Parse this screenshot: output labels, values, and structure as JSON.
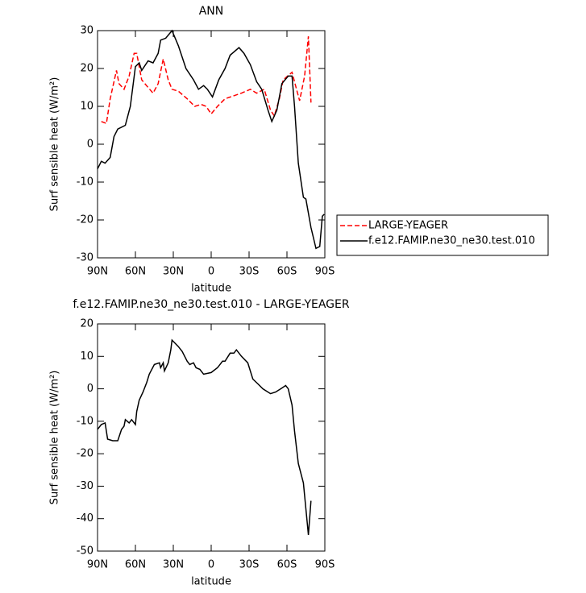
{
  "chart_data": [
    {
      "type": "line",
      "title": "ANN",
      "xlabel": "latitude",
      "ylabel": "Surf sensible heat (W/m²)",
      "xlim": [
        90,
        -90
      ],
      "xticks": [
        {
          "value": 90,
          "label": "90N"
        },
        {
          "value": 60,
          "label": "60N"
        },
        {
          "value": 30,
          "label": "30N"
        },
        0,
        {
          "value": -30,
          "label": "30S"
        },
        {
          "value": -60,
          "label": "60S"
        },
        {
          "value": -90,
          "label": "90S"
        }
      ],
      "ylim": [
        -30,
        30
      ],
      "yticks": [
        -30,
        -20,
        -10,
        0,
        10,
        20,
        30
      ],
      "legend": "right",
      "series": [
        {
          "name": "LARGE-YEAGER",
          "color": "#ff0000",
          "dash": true,
          "x": [
            87,
            83,
            80,
            75,
            73,
            69,
            65,
            61,
            59,
            55,
            50,
            46,
            42,
            38,
            34,
            31,
            26,
            19,
            13,
            8,
            4,
            0,
            -5,
            -11,
            -24,
            -31,
            -36,
            -42,
            -47,
            -50,
            -54,
            -57,
            -64,
            -68,
            -70,
            -74,
            -77,
            -79
          ],
          "values": [
            6,
            5.5,
            12,
            19.5,
            16,
            14.5,
            18,
            24,
            24,
            17,
            15,
            13.5,
            16,
            22.5,
            17,
            14.5,
            14,
            12,
            10,
            10.5,
            10,
            8,
            10,
            12,
            13.5,
            14.5,
            13.5,
            14.5,
            9,
            7.5,
            12,
            17,
            19,
            14,
            11.5,
            18,
            28.5,
            11
          ]
        },
        {
          "name": "f.e12.FAMIP.ne30_ne30.test.010",
          "color": "#000000",
          "dash": false,
          "x": [
            90,
            87,
            84,
            80,
            77,
            74,
            68,
            64,
            60,
            57,
            55,
            50,
            46,
            42,
            40,
            36,
            31,
            26,
            20,
            14,
            10,
            6,
            3,
            -1,
            -6,
            -11,
            -15,
            -22,
            -26,
            -31,
            -36,
            -40,
            -45,
            -48,
            -52,
            -56,
            -61,
            -64,
            -66,
            -69,
            -73,
            -75,
            -79,
            -83,
            -86,
            -88,
            -89.5
          ],
          "values": [
            -6.5,
            -4.5,
            -5,
            -3.5,
            2,
            4,
            5,
            10,
            20.5,
            21.5,
            19.5,
            22,
            21.5,
            24,
            27.5,
            28,
            30,
            26,
            20,
            17,
            14.5,
            15.5,
            14.5,
            12.5,
            17,
            20,
            23.5,
            25.5,
            24,
            21,
            16.5,
            14.5,
            9,
            6,
            9,
            16,
            18,
            18,
            10,
            -5,
            -14,
            -14.5,
            -22,
            -27.5,
            -27,
            -19,
            -18.5
          ]
        }
      ]
    },
    {
      "type": "line",
      "title": "f.e12.FAMIP.ne30_ne30.test.010 - LARGE-YEAGER",
      "xlabel": "latitude",
      "ylabel": "Surf sensible heat (W/m²)",
      "xlim": [
        90,
        -90
      ],
      "xticks": [
        {
          "value": 90,
          "label": "90N"
        },
        {
          "value": 60,
          "label": "60N"
        },
        {
          "value": 30,
          "label": "30N"
        },
        0,
        {
          "value": -30,
          "label": "30S"
        },
        {
          "value": -60,
          "label": "60S"
        },
        {
          "value": -90,
          "label": "90S"
        }
      ],
      "ylim": [
        -50,
        20
      ],
      "yticks": [
        -50,
        -40,
        -30,
        -20,
        -10,
        0,
        10,
        20
      ],
      "series": [
        {
          "color": "#000000",
          "dash": false,
          "x": [
            90,
            87,
            84,
            82,
            78,
            74,
            71,
            69,
            68,
            65,
            63,
            60,
            59,
            57,
            54,
            51,
            49,
            45,
            41,
            40,
            38,
            37,
            34,
            32,
            31,
            26,
            23,
            19,
            17,
            14,
            12,
            9,
            6,
            0,
            -5,
            -9,
            -11,
            -15,
            -18,
            -20,
            -24,
            -29,
            -33,
            -37,
            -41,
            -47,
            -51,
            -55,
            -59,
            -61,
            -64,
            -66,
            -69,
            -73,
            -77,
            -79
          ],
          "values": [
            -12.5,
            -11,
            -10.5,
            -15.5,
            -16,
            -16,
            -12.5,
            -11.5,
            -9.5,
            -10.5,
            -9.5,
            -11,
            -7,
            -3.5,
            -1,
            2,
            4.5,
            7.5,
            8,
            6.5,
            8,
            5.5,
            8,
            12,
            15,
            13,
            11.5,
            8.5,
            7.5,
            8,
            6.5,
            6,
            4.5,
            5,
            6.5,
            8.5,
            8.5,
            11,
            11,
            12,
            10,
            8,
            3,
            1.5,
            0,
            -1.5,
            -1,
            0,
            1,
            0,
            -5,
            -13,
            -23,
            -29,
            -45,
            -34.5
          ]
        }
      ]
    }
  ]
}
